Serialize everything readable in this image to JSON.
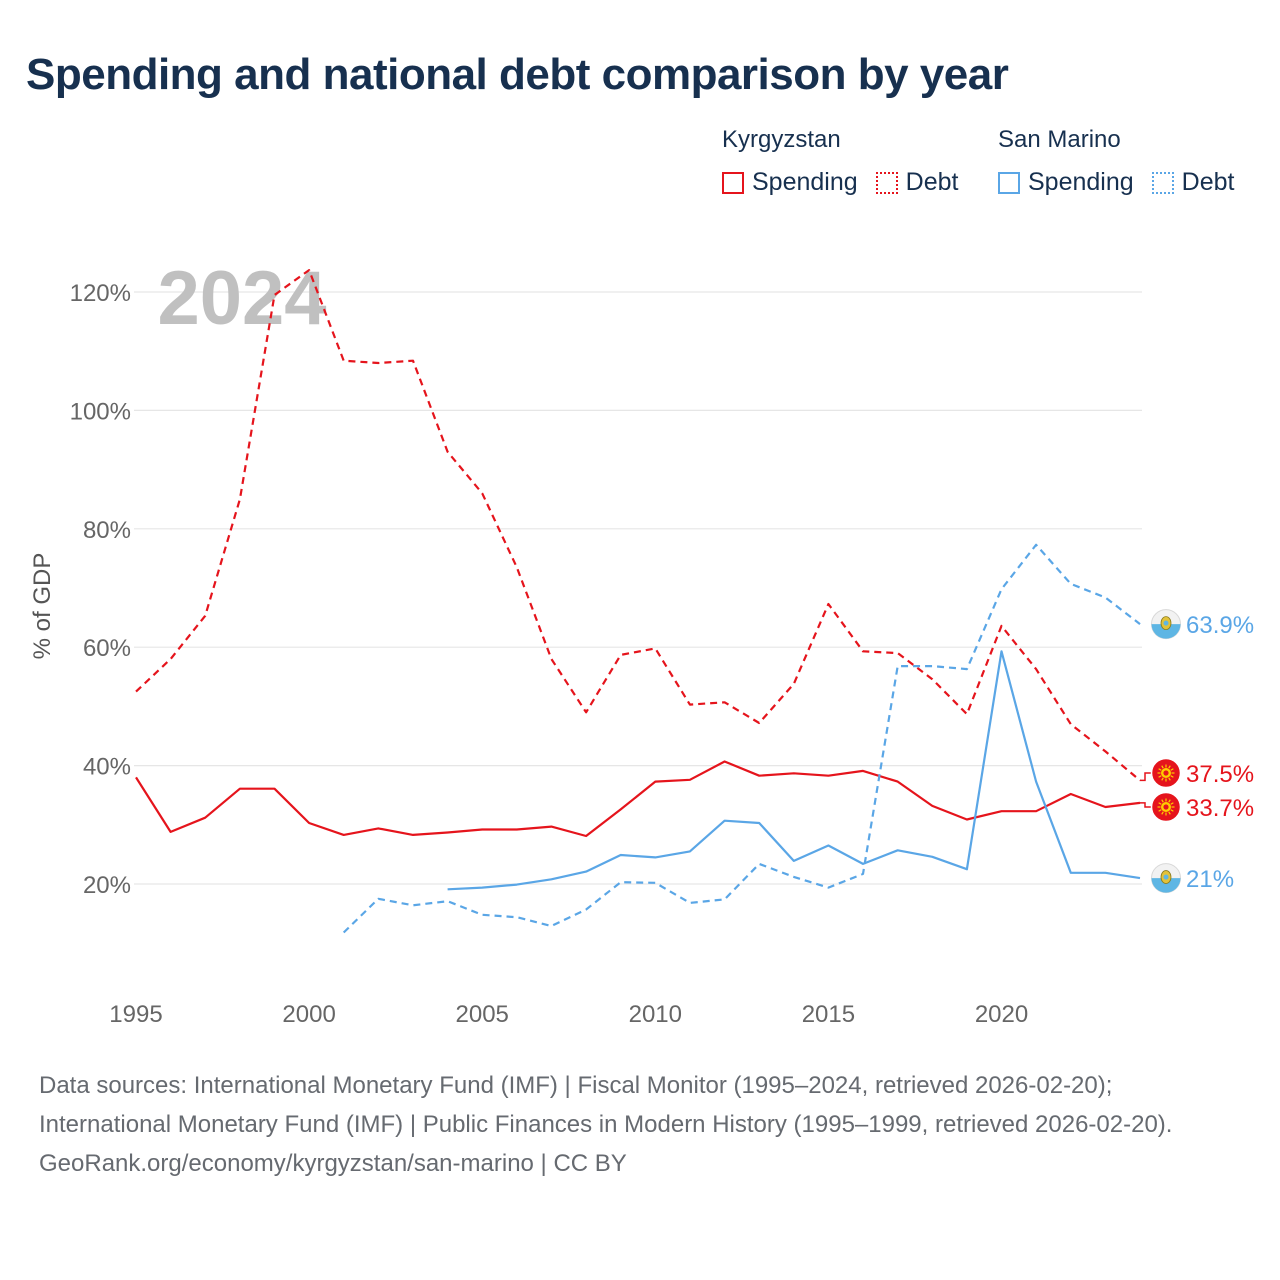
{
  "title": "Spending and national debt comparison by year",
  "legend": {
    "groups": [
      {
        "country": "Kyrgyzstan",
        "color": "#e5141c",
        "items": [
          {
            "label": "Spending",
            "style": "solid"
          },
          {
            "label": "Debt",
            "style": "dotted"
          }
        ]
      },
      {
        "country": "San Marino",
        "color": "#5aa6e6",
        "items": [
          {
            "label": "Spending",
            "style": "solid"
          },
          {
            "label": "Debt",
            "style": "dotted"
          }
        ]
      }
    ]
  },
  "chart_data": {
    "type": "line",
    "ylabel": "% of GDP",
    "xlabel": "",
    "year_watermark": "2024",
    "xlim": [
      1995,
      2024
    ],
    "ylim": [
      5,
      130
    ],
    "x_ticks": [
      1995,
      2000,
      2005,
      2010,
      2015,
      2020
    ],
    "y_ticks": [
      20,
      40,
      60,
      80,
      100,
      120
    ],
    "y_tick_labels": [
      "20%",
      "40%",
      "60%",
      "80%",
      "100%",
      "120%"
    ],
    "grid": true,
    "series": [
      {
        "name": "Kyrgyzstan Spending",
        "country": "Kyrgyzstan",
        "color": "#e5141c",
        "dash": "solid",
        "x": [
          1995,
          1996,
          1997,
          1998,
          1999,
          2000,
          2001,
          2002,
          2003,
          2004,
          2005,
          2006,
          2007,
          2008,
          2009,
          2010,
          2011,
          2012,
          2013,
          2014,
          2015,
          2016,
          2017,
          2018,
          2019,
          2020,
          2021,
          2022,
          2023,
          2024
        ],
        "values": [
          38,
          28.8,
          31.2,
          36.1,
          36.1,
          30.3,
          28.3,
          29.4,
          28.3,
          28.7,
          29.2,
          29.2,
          29.7,
          28.1,
          32.6,
          37.3,
          37.6,
          40.7,
          38.3,
          38.7,
          38.3,
          39.1,
          37.3,
          33.2,
          30.9,
          32.3,
          32.3,
          35.2,
          33,
          33.7
        ],
        "end_label": "33.7%"
      },
      {
        "name": "Kyrgyzstan Debt",
        "country": "Kyrgyzstan",
        "color": "#e5141c",
        "dash": "dashed",
        "x": [
          1995,
          1996,
          1997,
          1998,
          1999,
          2000,
          2001,
          2002,
          2003,
          2004,
          2005,
          2006,
          2007,
          2008,
          2009,
          2010,
          2011,
          2012,
          2013,
          2014,
          2015,
          2016,
          2017,
          2018,
          2019,
          2020,
          2021,
          2022,
          2023,
          2024
        ],
        "values": [
          52.5,
          58,
          65.3,
          85,
          119.5,
          123.7,
          108.4,
          108,
          108.4,
          93,
          86,
          73.5,
          58,
          49,
          58.7,
          59.8,
          50.3,
          50.7,
          47.2,
          53.8,
          67.3,
          59.3,
          59,
          54.6,
          48.7,
          63.6,
          56.3,
          47,
          42.4,
          37.5
        ],
        "end_label": "37.5%"
      },
      {
        "name": "San Marino Spending",
        "country": "San Marino",
        "color": "#5aa6e6",
        "dash": "solid",
        "x": [
          2004,
          2005,
          2006,
          2007,
          2008,
          2009,
          2010,
          2011,
          2012,
          2013,
          2014,
          2015,
          2016,
          2017,
          2018,
          2019,
          2020,
          2021,
          2022,
          2023,
          2024
        ],
        "values": [
          19.1,
          19.4,
          19.9,
          20.8,
          22.1,
          24.9,
          24.5,
          25.5,
          30.7,
          30.3,
          23.9,
          26.5,
          23.4,
          25.7,
          24.6,
          22.5,
          59.3,
          37.3,
          21.9,
          21.9,
          21
        ],
        "end_label": "21%"
      },
      {
        "name": "San Marino Debt",
        "country": "San Marino",
        "color": "#5aa6e6",
        "dash": "dashed",
        "x": [
          2001,
          2002,
          2003,
          2004,
          2005,
          2006,
          2007,
          2008,
          2009,
          2010,
          2011,
          2012,
          2013,
          2014,
          2015,
          2016,
          2017,
          2018,
          2019,
          2020,
          2021,
          2022,
          2023,
          2024
        ],
        "values": [
          11.8,
          17.5,
          16.4,
          17.1,
          14.8,
          14.4,
          12.9,
          15.7,
          20.3,
          20.2,
          16.8,
          17.4,
          23.4,
          21.2,
          19.4,
          21.7,
          56.8,
          56.8,
          56.3,
          69.8,
          77.3,
          70.7,
          68.4,
          63.9
        ],
        "end_label": "63.9%"
      }
    ]
  },
  "footer": {
    "sources": "Data sources: International Monetary Fund (IMF) | Fiscal Monitor (1995–2024, retrieved 2026-02-20); International Monetary Fund (IMF) | Public Finances in Modern History (1995–1999, retrieved 2026-02-20).",
    "credit": "GeoRank.org/economy/kyrgyzstan/san-marino | CC BY"
  }
}
